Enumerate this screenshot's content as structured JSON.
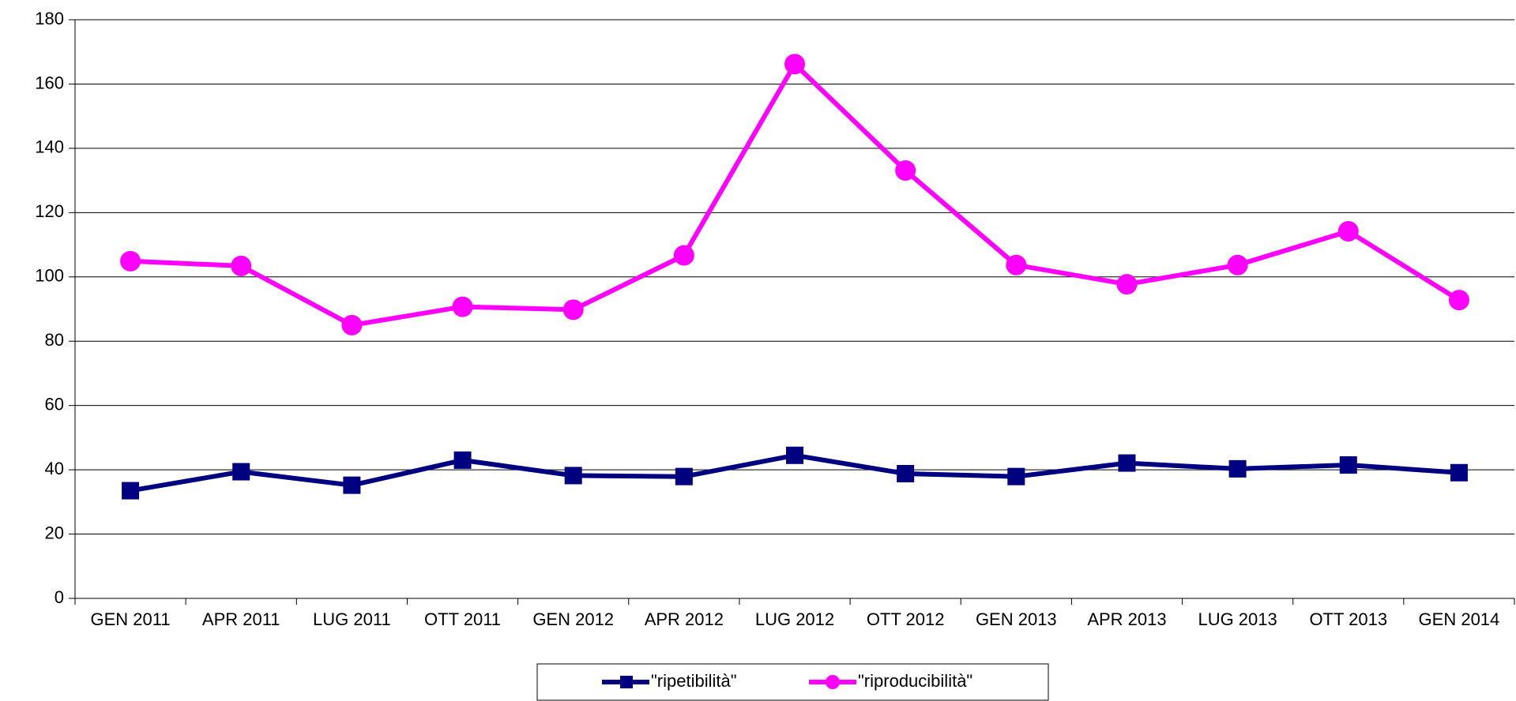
{
  "chart_data": {
    "type": "line",
    "categories": [
      "GEN 2011",
      "APR 2011",
      "LUG 2011",
      "OTT 2011",
      "GEN 2012",
      "APR 2012",
      "LUG 2012",
      "OTT 2012",
      "GEN 2013",
      "APR 2013",
      "LUG 2013",
      "OTT 2013",
      "GEN 2014"
    ],
    "series": [
      {
        "name": "\"ripetibilità\"",
        "color": "#000080",
        "marker": "square",
        "values": [
          33.5,
          39.4,
          35.2,
          43.0,
          38.2,
          37.9,
          44.5,
          38.8,
          37.9,
          42.1,
          40.3,
          41.5,
          39.1
        ]
      },
      {
        "name": "\"riproducibilità\"",
        "color": "#ff00ff",
        "marker": "circle",
        "values": [
          104.9,
          103.4,
          85.0,
          90.7,
          89.8,
          106.7,
          166.2,
          133.1,
          103.7,
          97.7,
          103.7,
          114.2,
          92.8
        ]
      }
    ],
    "ylim": [
      0,
      180
    ],
    "yticks": [
      0,
      20,
      40,
      60,
      80,
      100,
      120,
      140,
      160,
      180
    ],
    "grid": true,
    "legend": "bottom"
  }
}
